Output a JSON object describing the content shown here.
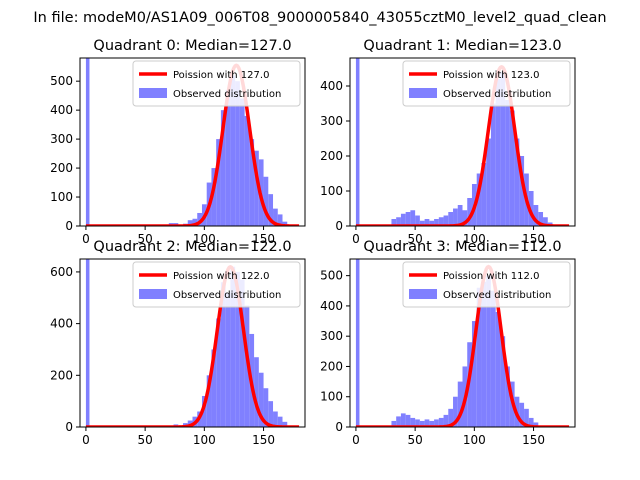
{
  "figure": {
    "suptitle": "In file: modeM0/AS1A09_006T08_9000005840_43055cztM0_level2_quad_clean"
  },
  "legend": {
    "line_label": "Poission with {m}",
    "bar_label": "Observed distribution"
  },
  "colors": {
    "histogram": "#8080ff",
    "poisson_line": "#ff0000"
  },
  "chart_data": [
    {
      "type": "bar",
      "title": "Quadrant 0: Median=127.0",
      "median": 127.0,
      "xlim": [
        -5,
        185
      ],
      "ylim": [
        0,
        580
      ],
      "xticks": [
        0,
        50,
        100,
        150
      ],
      "yticks": [
        0,
        100,
        200,
        300,
        400,
        500
      ],
      "poisson_mean": 127.0,
      "poisson_peak": 555,
      "bin_width": 4,
      "bins": [
        {
          "x": 0,
          "y": 580
        },
        {
          "x": 70,
          "y": 10
        },
        {
          "x": 74,
          "y": 10
        },
        {
          "x": 82,
          "y": 8
        },
        {
          "x": 86,
          "y": 20
        },
        {
          "x": 90,
          "y": 25
        },
        {
          "x": 94,
          "y": 45
        },
        {
          "x": 98,
          "y": 75
        },
        {
          "x": 102,
          "y": 150
        },
        {
          "x": 106,
          "y": 200
        },
        {
          "x": 110,
          "y": 300
        },
        {
          "x": 114,
          "y": 400
        },
        {
          "x": 118,
          "y": 470
        },
        {
          "x": 122,
          "y": 520
        },
        {
          "x": 126,
          "y": 500
        },
        {
          "x": 130,
          "y": 440
        },
        {
          "x": 134,
          "y": 380
        },
        {
          "x": 138,
          "y": 300
        },
        {
          "x": 142,
          "y": 260
        },
        {
          "x": 146,
          "y": 230
        },
        {
          "x": 150,
          "y": 170
        },
        {
          "x": 154,
          "y": 110
        },
        {
          "x": 158,
          "y": 60
        },
        {
          "x": 162,
          "y": 40
        },
        {
          "x": 166,
          "y": 15
        }
      ]
    },
    {
      "type": "bar",
      "title": "Quadrant 1: Median=123.0",
      "median": 123.0,
      "xlim": [
        -5,
        185
      ],
      "ylim": [
        0,
        480
      ],
      "xticks": [
        0,
        50,
        100,
        150
      ],
      "yticks": [
        0,
        100,
        200,
        300,
        400
      ],
      "poisson_mean": 123.0,
      "poisson_peak": 455,
      "bin_width": 4,
      "bins": [
        {
          "x": 0,
          "y": 480
        },
        {
          "x": 30,
          "y": 20
        },
        {
          "x": 34,
          "y": 25
        },
        {
          "x": 38,
          "y": 35
        },
        {
          "x": 42,
          "y": 40
        },
        {
          "x": 46,
          "y": 45
        },
        {
          "x": 50,
          "y": 30
        },
        {
          "x": 54,
          "y": 15
        },
        {
          "x": 58,
          "y": 20
        },
        {
          "x": 62,
          "y": 15
        },
        {
          "x": 66,
          "y": 20
        },
        {
          "x": 70,
          "y": 25
        },
        {
          "x": 74,
          "y": 30
        },
        {
          "x": 78,
          "y": 40
        },
        {
          "x": 82,
          "y": 50
        },
        {
          "x": 86,
          "y": 60
        },
        {
          "x": 90,
          "y": 45
        },
        {
          "x": 94,
          "y": 80
        },
        {
          "x": 98,
          "y": 120
        },
        {
          "x": 102,
          "y": 150
        },
        {
          "x": 106,
          "y": 180
        },
        {
          "x": 110,
          "y": 250
        },
        {
          "x": 114,
          "y": 350
        },
        {
          "x": 118,
          "y": 420
        },
        {
          "x": 122,
          "y": 440
        },
        {
          "x": 126,
          "y": 360
        },
        {
          "x": 130,
          "y": 330
        },
        {
          "x": 134,
          "y": 250
        },
        {
          "x": 138,
          "y": 200
        },
        {
          "x": 142,
          "y": 150
        },
        {
          "x": 146,
          "y": 100
        },
        {
          "x": 150,
          "y": 60
        },
        {
          "x": 154,
          "y": 40
        },
        {
          "x": 158,
          "y": 25
        },
        {
          "x": 162,
          "y": 10
        }
      ]
    },
    {
      "type": "bar",
      "title": "Quadrant 2: Median=122.0",
      "median": 122.0,
      "xlim": [
        -5,
        185
      ],
      "ylim": [
        0,
        650
      ],
      "xticks": [
        0,
        50,
        100,
        150
      ],
      "yticks": [
        0,
        200,
        400,
        600
      ],
      "poisson_mean": 122.0,
      "poisson_peak": 620,
      "bin_width": 4,
      "bins": [
        {
          "x": 0,
          "y": 650
        },
        {
          "x": 74,
          "y": 10
        },
        {
          "x": 82,
          "y": 15
        },
        {
          "x": 86,
          "y": 25
        },
        {
          "x": 90,
          "y": 40
        },
        {
          "x": 94,
          "y": 60
        },
        {
          "x": 98,
          "y": 120
        },
        {
          "x": 102,
          "y": 200
        },
        {
          "x": 106,
          "y": 300
        },
        {
          "x": 110,
          "y": 420
        },
        {
          "x": 114,
          "y": 560
        },
        {
          "x": 118,
          "y": 520
        },
        {
          "x": 122,
          "y": 620
        },
        {
          "x": 126,
          "y": 600
        },
        {
          "x": 130,
          "y": 570
        },
        {
          "x": 134,
          "y": 470
        },
        {
          "x": 138,
          "y": 360
        },
        {
          "x": 142,
          "y": 270
        },
        {
          "x": 146,
          "y": 210
        },
        {
          "x": 150,
          "y": 150
        },
        {
          "x": 154,
          "y": 100
        },
        {
          "x": 158,
          "y": 60
        },
        {
          "x": 162,
          "y": 40
        },
        {
          "x": 166,
          "y": 20
        }
      ]
    },
    {
      "type": "bar",
      "title": "Quadrant 3: Median=112.0",
      "median": 112.0,
      "xlim": [
        -5,
        185
      ],
      "ylim": [
        0,
        555
      ],
      "xticks": [
        0,
        50,
        100,
        150
      ],
      "yticks": [
        0,
        100,
        200,
        300,
        400,
        500
      ],
      "poisson_mean": 112.0,
      "poisson_peak": 530,
      "bin_width": 4,
      "bins": [
        {
          "x": 0,
          "y": 555
        },
        {
          "x": 30,
          "y": 20
        },
        {
          "x": 34,
          "y": 35
        },
        {
          "x": 38,
          "y": 45
        },
        {
          "x": 42,
          "y": 40
        },
        {
          "x": 46,
          "y": 30
        },
        {
          "x": 50,
          "y": 25
        },
        {
          "x": 54,
          "y": 20
        },
        {
          "x": 58,
          "y": 25
        },
        {
          "x": 62,
          "y": 20
        },
        {
          "x": 66,
          "y": 25
        },
        {
          "x": 70,
          "y": 30
        },
        {
          "x": 74,
          "y": 40
        },
        {
          "x": 78,
          "y": 60
        },
        {
          "x": 82,
          "y": 100
        },
        {
          "x": 86,
          "y": 150
        },
        {
          "x": 90,
          "y": 200
        },
        {
          "x": 94,
          "y": 280
        },
        {
          "x": 98,
          "y": 350
        },
        {
          "x": 102,
          "y": 460
        },
        {
          "x": 106,
          "y": 480
        },
        {
          "x": 110,
          "y": 500
        },
        {
          "x": 114,
          "y": 450
        },
        {
          "x": 118,
          "y": 380
        },
        {
          "x": 122,
          "y": 300
        },
        {
          "x": 126,
          "y": 200
        },
        {
          "x": 130,
          "y": 150
        },
        {
          "x": 134,
          "y": 100
        },
        {
          "x": 138,
          "y": 80
        },
        {
          "x": 142,
          "y": 60
        },
        {
          "x": 146,
          "y": 30
        },
        {
          "x": 150,
          "y": 15
        }
      ]
    }
  ]
}
